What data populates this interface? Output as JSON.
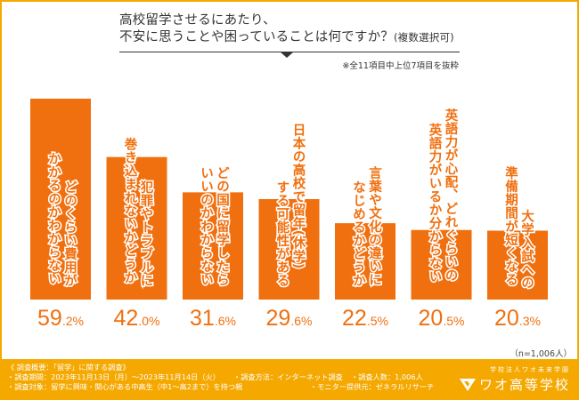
{
  "title": {
    "line1": "高校留学させるにあたり、",
    "line2": "不安に思うことや困っていることは何ですか？",
    "line2_suffix": "(複数選択可)"
  },
  "note": "※全11項目中上位7項目を抜粋",
  "sample_note": "（n=1,006人）",
  "colors": {
    "bar": "#F07010",
    "frame": "#F5A800",
    "text": "#333333"
  },
  "chart_data": {
    "type": "bar",
    "title": "高校留学させるにあたり、不安に思うことや困っていることは何ですか？(複数選択可)",
    "xlabel": "",
    "ylabel": "",
    "ylim": [
      0,
      59.2
    ],
    "unit": "%",
    "categories": [
      "どのくらい費用がかかるのかわからない",
      "犯罪やトラブルに巻き込まれないかどうか",
      "どの国に留学したらいいのかわからない",
      "日本の高校で留年(休学)する可能性がある",
      "言葉や文化の違いになじめるかどうか",
      "英語力が心配、どれぐらいの英語力がいるか分からない",
      "大学入試への準備期間が短くなる"
    ],
    "label_lines": [
      [
        "どのくらい費用が",
        "かかるのかわからない"
      ],
      [
        "犯罪やトラブルに",
        "巻き込まれないかどうか"
      ],
      [
        "どの国に留学したら",
        "いいのかわからない"
      ],
      [
        "日本の高校で留年(休学)",
        "する可能性がある"
      ],
      [
        "言葉や文化の違いに",
        "なじめるかどうか"
      ],
      [
        "英語力が心配、どれぐらいの",
        "英語力がいるか分からない"
      ],
      [
        "大学入試への",
        "準備期間が短くなる"
      ]
    ],
    "values": [
      59.2,
      42.0,
      31.6,
      29.6,
      22.5,
      20.5,
      20.3
    ],
    "value_labels": [
      {
        "int": "59",
        "dec": ".2%"
      },
      {
        "int": "42",
        "dec": ".0%"
      },
      {
        "int": "31",
        "dec": ".6%"
      },
      {
        "int": "29",
        "dec": ".6%"
      },
      {
        "int": "22",
        "dec": ".5%"
      },
      {
        "int": "20",
        "dec": ".5%"
      },
      {
        "int": "20",
        "dec": ".3%"
      }
    ],
    "grid": false,
    "legend": "none"
  },
  "footer": {
    "summary": "《 調査概要：「留学」に関する調査》",
    "period": "・調査期間：2023年11月13日（月）～2023年11月14日（火）",
    "method": "・調査方法：インターネット調査",
    "count": "・調査人数：1,006人",
    "target": "・調査対象：留学に興味・関心がある中高生（中1～高2まで）を持つ親",
    "provider": "・モニター提供元：ゼネラルリサーチ"
  },
  "logo": {
    "sub": "学校法人ワオ未来学園",
    "main": "ワオ高等学校",
    "icon": "wao-logo-icon"
  }
}
